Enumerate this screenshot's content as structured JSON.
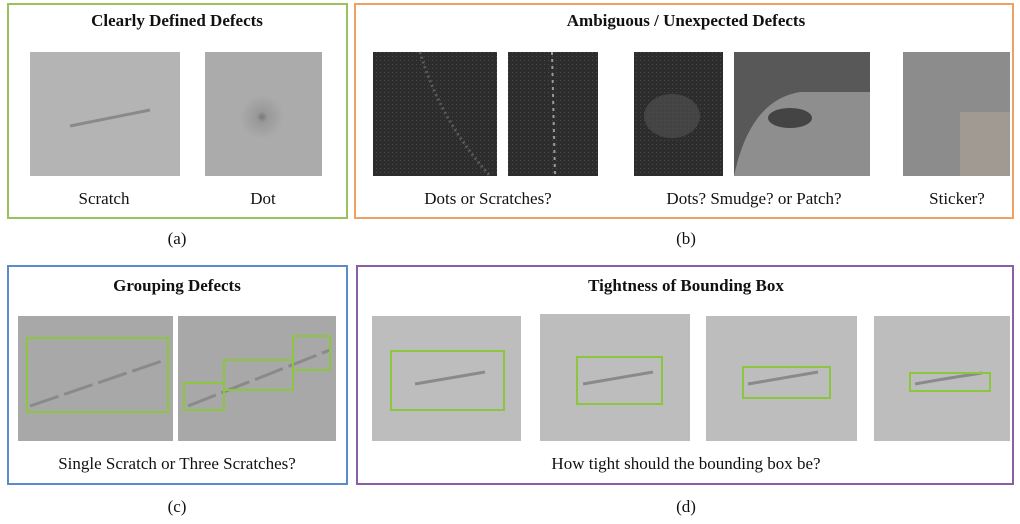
{
  "panels": [
    {
      "label": "(a)",
      "title": "Clearly Defined Defects",
      "captions": [
        "Scratch",
        "Dot"
      ]
    },
    {
      "label": "(b)",
      "title": "Ambiguous / Unexpected Defects",
      "captions": [
        "Dots or Scratches?",
        "Dots? Smudge? or Patch?",
        "Sticker?"
      ]
    },
    {
      "label": "(c)",
      "title": "Grouping Defects",
      "captions": [
        "Single Scratch or Three Scratches?"
      ]
    },
    {
      "label": "(d)",
      "title": "Tightness of Bounding Box",
      "captions": [
        "How tight should the bounding box be?"
      ]
    }
  ]
}
